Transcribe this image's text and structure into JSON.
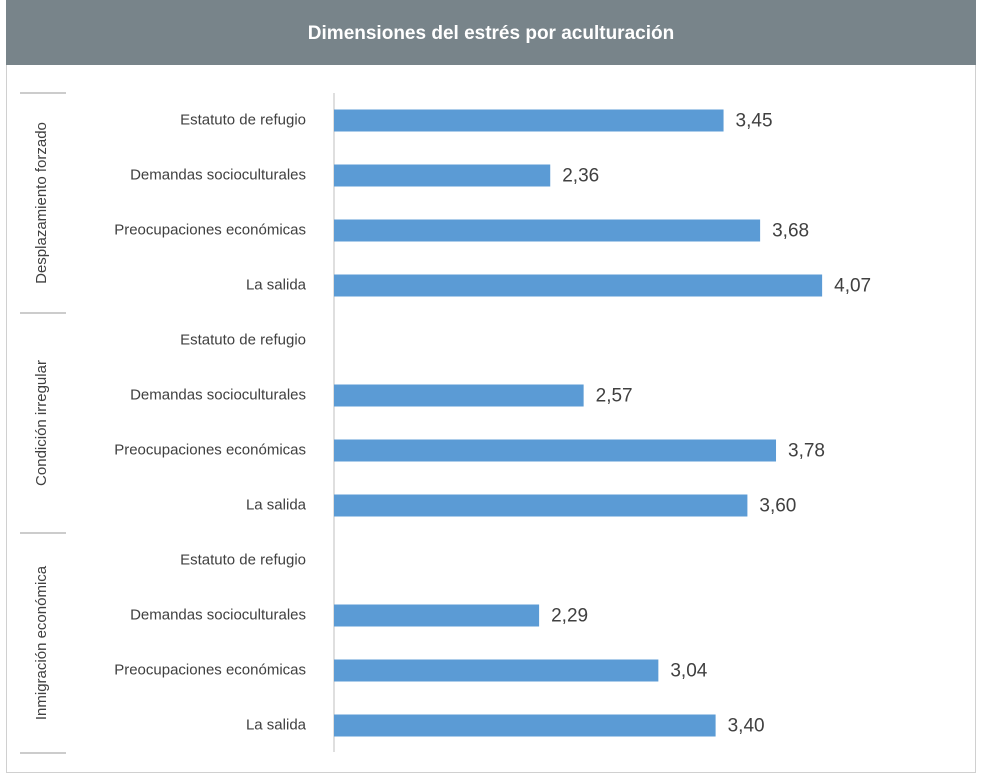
{
  "chart_data": {
    "type": "bar",
    "orientation": "horizontal",
    "title": "Dimensiones del estrés por aculturación",
    "color": "#5b9bd5",
    "xlim": [
      1,
      5
    ],
    "groups": [
      {
        "name": "Desplazamiento forzado",
        "categories": [
          "Estatuto de refugio",
          "Demandas socioculturales",
          "Preocupaciones económicas",
          "La salida"
        ],
        "values": [
          3.45,
          2.36,
          3.68,
          4.07
        ],
        "value_labels": [
          "3,45",
          "2,36",
          "3,68",
          "4,07"
        ]
      },
      {
        "name": "Condición irregular",
        "categories": [
          "Estatuto de refugio",
          "Demandas socioculturales",
          "Preocupaciones económicas",
          "La salida"
        ],
        "values": [
          null,
          2.57,
          3.78,
          3.6
        ],
        "value_labels": [
          null,
          "2,57",
          "3,78",
          "3,60"
        ]
      },
      {
        "name": "Inmigración económica",
        "categories": [
          "Estatuto de refugio",
          "Demandas socioculturales",
          "Preocupaciones económicas",
          "La salida"
        ],
        "values": [
          null,
          2.29,
          3.04,
          3.4
        ],
        "value_labels": [
          null,
          "2,29",
          "3,04",
          "3,40"
        ]
      }
    ]
  }
}
